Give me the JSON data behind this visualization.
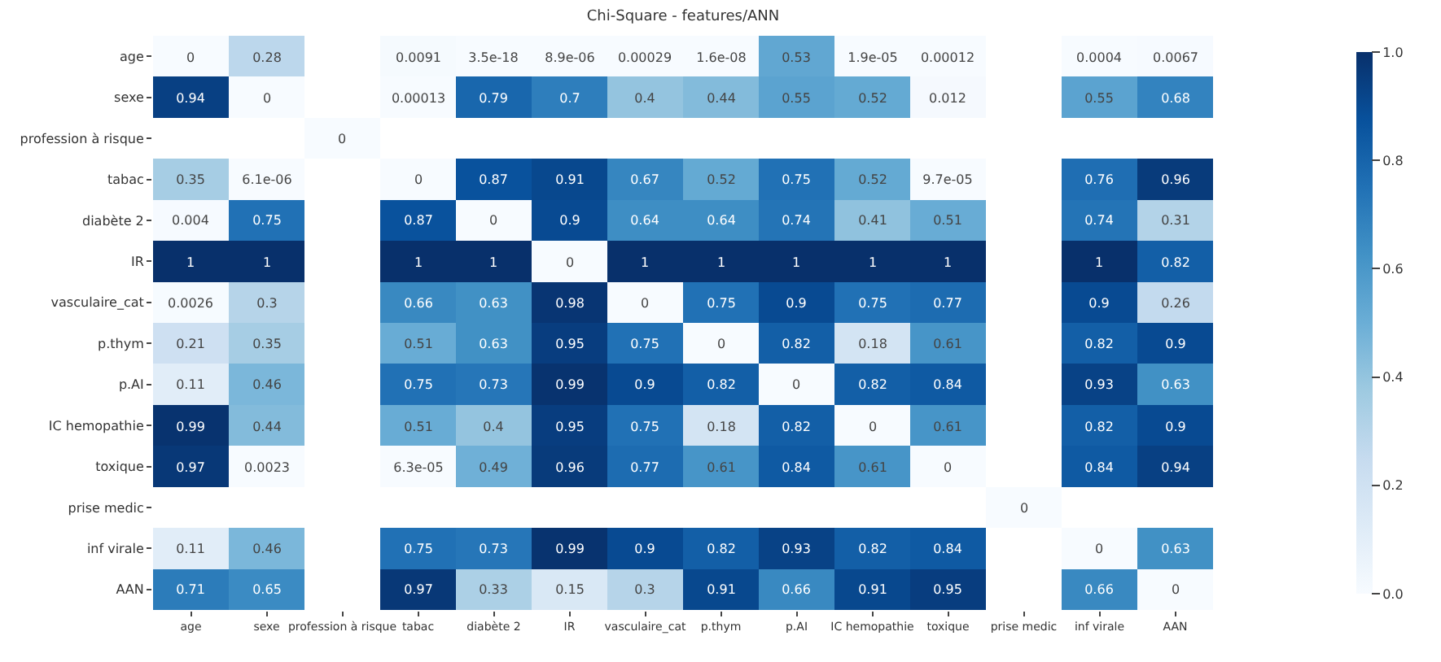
{
  "chart_data": {
    "type": "heatmap",
    "title": "Chi-Square - features/ANN",
    "categories": [
      "age",
      "sexe",
      "profession à risque",
      "tabac",
      "diabète 2",
      "IR",
      "vasculaire_cat",
      "p.thym",
      "p.AI",
      "IC hemopathie",
      "toxique",
      "prise medic",
      "inf virale",
      "AAN"
    ],
    "y_categories": [
      "age",
      "sexe",
      "profession à risque",
      "tabac",
      "diabète 2",
      "IR",
      "vasculaire_cat",
      "p.thym",
      "p.AI",
      "IC hemopathie",
      "toxique",
      "prise medic",
      "inf virale",
      "AAN"
    ],
    "cells": [
      [
        0,
        0.28,
        null,
        0.0091,
        3.5e-18,
        8.9e-06,
        0.00029,
        1.6e-08,
        0.53,
        1.9e-05,
        0.00012,
        null,
        0.0004,
        0.0067
      ],
      [
        0.94,
        0,
        null,
        0.00013,
        0.79,
        0.7,
        0.4,
        0.44,
        0.55,
        0.52,
        0.012,
        null,
        0.55,
        0.68
      ],
      [
        null,
        null,
        0,
        null,
        null,
        null,
        null,
        null,
        null,
        null,
        null,
        null,
        null,
        null
      ],
      [
        0.35,
        6.1e-06,
        null,
        0,
        0.87,
        0.91,
        0.67,
        0.52,
        0.75,
        0.52,
        9.7e-05,
        null,
        0.76,
        0.96
      ],
      [
        0.004,
        0.75,
        null,
        0.87,
        0,
        0.9,
        0.64,
        0.64,
        0.74,
        0.41,
        0.51,
        null,
        0.74,
        0.31
      ],
      [
        1,
        1,
        null,
        1,
        1,
        0,
        1,
        1,
        1,
        1,
        1,
        null,
        1,
        0.82
      ],
      [
        0.0026,
        0.3,
        null,
        0.66,
        0.63,
        0.98,
        0,
        0.75,
        0.9,
        0.75,
        0.77,
        null,
        0.9,
        0.26
      ],
      [
        0.21,
        0.35,
        null,
        0.51,
        0.63,
        0.95,
        0.75,
        0,
        0.82,
        0.18,
        0.61,
        null,
        0.82,
        0.9
      ],
      [
        0.11,
        0.46,
        null,
        0.75,
        0.73,
        0.99,
        0.9,
        0.82,
        0,
        0.82,
        0.84,
        null,
        0.93,
        0.63
      ],
      [
        0.99,
        0.44,
        null,
        0.51,
        0.4,
        0.95,
        0.75,
        0.18,
        0.82,
        0,
        0.61,
        null,
        0.82,
        0.9
      ],
      [
        0.97,
        0.0023,
        null,
        6.3e-05,
        0.49,
        0.96,
        0.77,
        0.61,
        0.84,
        0.61,
        0,
        null,
        0.84,
        0.94
      ],
      [
        null,
        null,
        null,
        null,
        null,
        null,
        null,
        null,
        null,
        null,
        null,
        0,
        null,
        null
      ],
      [
        0.11,
        0.46,
        null,
        0.75,
        0.73,
        0.99,
        0.9,
        0.82,
        0.93,
        0.82,
        0.84,
        null,
        0,
        0.63
      ],
      [
        0.71,
        0.65,
        null,
        0.97,
        0.33,
        0.15,
        0.3,
        0.91,
        0.66,
        0.91,
        0.95,
        null,
        0.66,
        0
      ]
    ],
    "cell_labels": [
      [
        "0",
        "0.28",
        null,
        "0.0091",
        "3.5e-18",
        "8.9e-06",
        "0.00029",
        "1.6e-08",
        "0.53",
        "1.9e-05",
        "0.00012",
        null,
        "0.0004",
        "0.0067"
      ],
      [
        "0.94",
        "0",
        null,
        "0.00013",
        "0.79",
        "0.7",
        "0.4",
        "0.44",
        "0.55",
        "0.52",
        "0.012",
        null,
        "0.55",
        "0.68"
      ],
      [
        null,
        null,
        "0",
        null,
        null,
        null,
        null,
        null,
        null,
        null,
        null,
        null,
        null,
        null
      ],
      [
        "0.35",
        "6.1e-06",
        null,
        "0",
        "0.87",
        "0.91",
        "0.67",
        "0.52",
        "0.75",
        "0.52",
        "9.7e-05",
        null,
        "0.76",
        "0.96"
      ],
      [
        "0.004",
        "0.75",
        null,
        "0.87",
        "0",
        "0.9",
        "0.64",
        "0.64",
        "0.74",
        "0.41",
        "0.51",
        null,
        "0.74",
        "0.31"
      ],
      [
        "1",
        "1",
        null,
        "1",
        "1",
        "0",
        "1",
        "1",
        "1",
        "1",
        "1",
        null,
        "1",
        "0.82"
      ],
      [
        "0.0026",
        "0.3",
        null,
        "0.66",
        "0.63",
        "0.98",
        "0",
        "0.75",
        "0.9",
        "0.75",
        "0.77",
        null,
        "0.9",
        "0.26"
      ],
      [
        "0.21",
        "0.35",
        null,
        "0.51",
        "0.63",
        "0.95",
        "0.75",
        "0",
        "0.82",
        "0.18",
        "0.61",
        null,
        "0.82",
        "0.9"
      ],
      [
        "0.11",
        "0.46",
        null,
        "0.75",
        "0.73",
        "0.99",
        "0.9",
        "0.82",
        "0",
        "0.82",
        "0.84",
        null,
        "0.93",
        "0.63"
      ],
      [
        "0.99",
        "0.44",
        null,
        "0.51",
        "0.4",
        "0.95",
        "0.75",
        "0.18",
        "0.82",
        "0",
        "0.61",
        null,
        "0.82",
        "0.9"
      ],
      [
        "0.97",
        "0.0023",
        null,
        "6.3e-05",
        "0.49",
        "0.96",
        "0.77",
        "0.61",
        "0.84",
        "0.61",
        "0",
        null,
        "0.84",
        "0.94"
      ],
      [
        null,
        null,
        null,
        null,
        null,
        null,
        null,
        null,
        null,
        null,
        null,
        "0",
        null,
        null
      ],
      [
        "0.11",
        "0.46",
        null,
        "0.75",
        "0.73",
        "0.99",
        "0.9",
        "0.82",
        "0.93",
        "0.82",
        "0.84",
        null,
        "0",
        "0.63"
      ],
      [
        "0.71",
        "0.65",
        null,
        "0.97",
        "0.33",
        "0.15",
        "0.3",
        "0.91",
        "0.66",
        "0.91",
        "0.95",
        null,
        "0.66",
        "0"
      ]
    ],
    "clim": [
      0,
      1
    ],
    "cticks": [
      {
        "value": 0,
        "label": "0.0"
      },
      {
        "value": 0.2,
        "label": "0.2"
      },
      {
        "value": 0.4,
        "label": "0.4"
      },
      {
        "value": 0.6,
        "label": "0.6"
      },
      {
        "value": 0.8,
        "label": "0.8"
      },
      {
        "value": 1,
        "label": "1.0"
      }
    ]
  }
}
